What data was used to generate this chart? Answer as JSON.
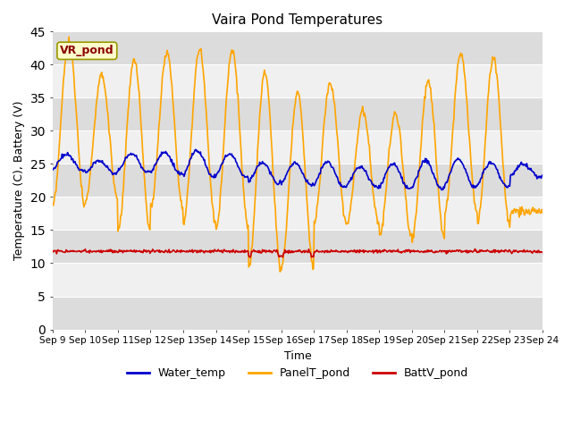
{
  "title": "Vaira Pond Temperatures",
  "xlabel": "Time",
  "ylabel": "Temperature (C), Battery (V)",
  "site_label": "VR_pond",
  "ylim": [
    0,
    45
  ],
  "x_tick_labels": [
    "Sep 9",
    "Sep 10",
    "Sep 11",
    "Sep 12",
    "Sep 13",
    "Sep 14",
    "Sep 15",
    "Sep 16",
    "Sep 17",
    "Sep 18",
    "Sep 19",
    "Sep 20",
    "Sep 21",
    "Sep 22",
    "Sep 23",
    "Sep 24"
  ],
  "water_color": "#0000cc",
  "panel_color": "#ffa500",
  "batt_color": "#cc0000",
  "bg_light": "#f0f0f0",
  "bg_dark": "#dcdcdc",
  "line_width": 1.2,
  "legend_labels": [
    "Water_temp",
    "PanelT_pond",
    "BattV_pond"
  ],
  "panel_peaks": [
    43.5,
    38.5,
    40.7,
    41.8,
    42.3,
    42.3,
    38.9,
    35.8,
    37.2,
    33.1,
    32.7,
    37.5,
    41.8,
    41.0,
    17.8
  ],
  "panel_lows": [
    18.5,
    19.5,
    14.8,
    18.3,
    16.0,
    15.3,
    9.2,
    9.5,
    16.3,
    15.8,
    14.0,
    13.8,
    17.8,
    16.0,
    17.8
  ],
  "water_peaks": [
    26.5,
    25.5,
    26.5,
    26.8,
    27.0,
    26.5,
    25.2,
    25.2,
    25.3,
    24.5,
    25.0,
    25.5,
    25.8,
    25.2,
    25.0
  ],
  "water_lows": [
    24.0,
    23.5,
    23.8,
    23.5,
    23.0,
    23.0,
    22.0,
    21.8,
    21.5,
    21.5,
    21.2,
    21.2,
    21.5,
    21.5,
    23.0
  ],
  "batt_base": 11.8,
  "figsize": [
    6.4,
    4.8
  ],
  "dpi": 100
}
